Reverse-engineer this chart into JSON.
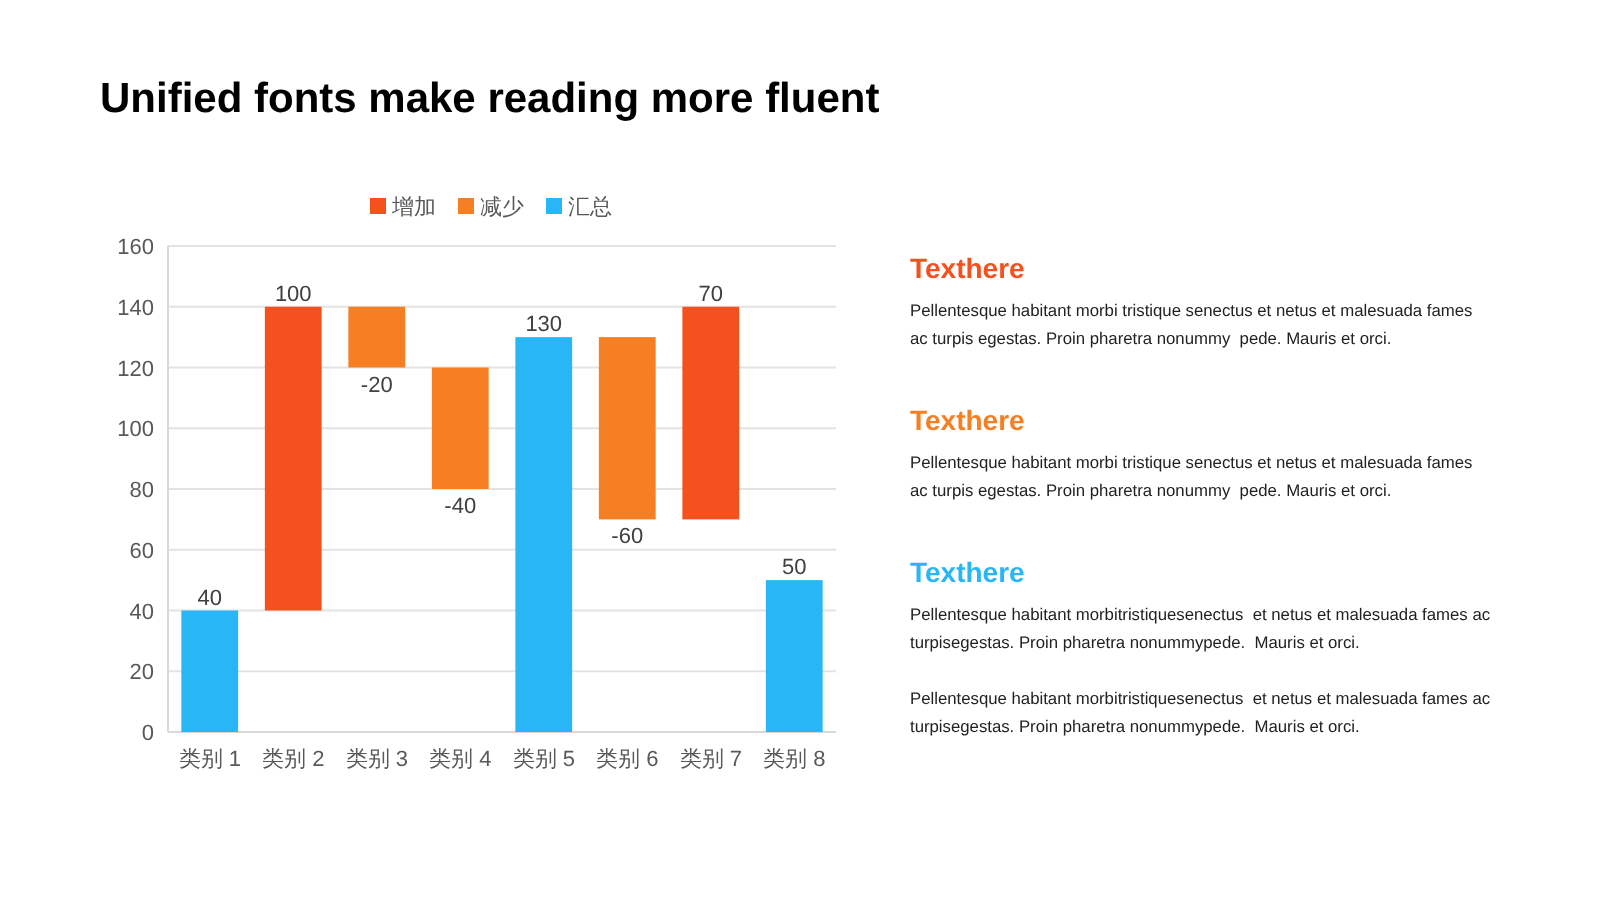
{
  "chart_data": [
    {
      "type": "bar",
      "title": "Unified fonts make reading more fluent",
      "categories": [
        "类别 1",
        "类别 2",
        "类别 3",
        "类别 4",
        "类别 5",
        "类别 6",
        "类别 7",
        "类别 8"
      ],
      "series": [
        {
          "name": "增加",
          "color": "#f4511e",
          "base": [
            null,
            40,
            null,
            null,
            null,
            null,
            70,
            null
          ],
          "values": [
            null,
            100,
            null,
            null,
            null,
            null,
            70,
            null
          ]
        },
        {
          "name": "减少",
          "color": "#f57f22",
          "base": [
            null,
            null,
            140,
            120,
            null,
            130,
            null,
            null
          ],
          "values": [
            null,
            null,
            -20,
            -40,
            null,
            -60,
            null,
            null
          ]
        },
        {
          "name": "汇总",
          "color": "#29b6f6",
          "values": [
            40,
            null,
            null,
            null,
            130,
            null,
            null,
            50
          ]
        }
      ],
      "ylim": [
        0,
        160
      ],
      "yticks": [
        0,
        20,
        40,
        60,
        80,
        100,
        120,
        140,
        160
      ],
      "grid": "y",
      "legend": "top",
      "data_labels": true
    },
    {
      "type": "other",
      "annotations": [
        "Texthere",
        "Pellentesque habitant morbi tristique senectus et netus et malesuada fames ac turpis egestas. Proin pharetra nonummy  pede. Mauris et orci.",
        "Texthere",
        "Pellentesque habitant morbi tristique senectus et netus et malesuada fames ac turpis egestas. Proin pharetra nonummy  pede. Mauris et orci.",
        "Texthere",
        "Pellentesque habitant morbitristiquesenectus  et netus et malesuada fames ac turpisegestas. Proin pharetra nonummypede.  Mauris et orci.",
        "Pellentesque habitant morbitristiquesenectus  et netus et malesuada fames ac turpisegestas. Proin pharetra nonummypede.  Mauris et orci."
      ],
      "colors": [
        "#f4511e",
        "#222222",
        "#f57f22",
        "#222222",
        "#29b6f6",
        "#222222",
        "#222222"
      ]
    }
  ]
}
